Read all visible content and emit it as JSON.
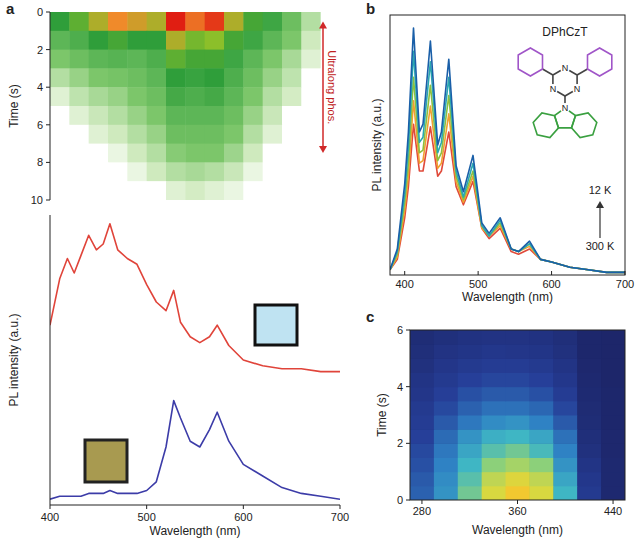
{
  "chart_data": [
    {
      "type": "heatmap",
      "panel": "a",
      "y_label": "Time (s)",
      "annotation": {
        "text": "Ultralong phos.",
        "range": [
          0.5,
          7.5
        ]
      },
      "x_bins": [
        400,
        420,
        440,
        460,
        480,
        500,
        520,
        540,
        560,
        580,
        600,
        620,
        640,
        660,
        680,
        700
      ],
      "y_bins": [
        0,
        1,
        2,
        3,
        4,
        5,
        6,
        7,
        8,
        9,
        10
      ],
      "cells": [
        [
          0.45,
          0.55,
          0.7,
          0.8,
          0.75,
          0.7,
          1.0,
          0.85,
          0.95,
          0.7,
          0.5,
          0.4,
          0.25,
          0.1,
          0
        ],
        [
          0.3,
          0.35,
          0.45,
          0.5,
          0.45,
          0.45,
          0.7,
          0.6,
          0.65,
          0.5,
          0.4,
          0.3,
          0.2,
          0.05,
          0
        ],
        [
          0.2,
          0.25,
          0.3,
          0.32,
          0.3,
          0.35,
          0.55,
          0.5,
          0.5,
          0.4,
          0.3,
          0.2,
          0.12,
          0.03,
          0
        ],
        [
          0.1,
          0.15,
          0.2,
          0.22,
          0.25,
          0.3,
          0.45,
          0.42,
          0.45,
          0.35,
          0.25,
          0.15,
          0.08,
          0,
          0
        ],
        [
          0.03,
          0.08,
          0.12,
          0.15,
          0.2,
          0.25,
          0.38,
          0.35,
          0.38,
          0.3,
          0.2,
          0.1,
          0.04,
          0,
          0
        ],
        [
          0,
          0.03,
          0.06,
          0.1,
          0.15,
          0.2,
          0.3,
          0.3,
          0.3,
          0.25,
          0.15,
          0.06,
          0,
          0,
          0
        ],
        [
          0,
          0,
          0.03,
          0.05,
          0.1,
          0.15,
          0.25,
          0.25,
          0.25,
          0.2,
          0.1,
          0.03,
          0,
          0,
          0
        ],
        [
          0,
          0,
          0,
          0.02,
          0.05,
          0.1,
          0.18,
          0.2,
          0.2,
          0.14,
          0.05,
          0,
          0,
          0,
          0
        ],
        [
          0,
          0,
          0,
          0,
          0.02,
          0.05,
          0.1,
          0.12,
          0.1,
          0.06,
          0.02,
          0,
          0,
          0,
          0
        ],
        [
          0,
          0,
          0,
          0,
          0,
          0,
          0.03,
          0.04,
          0.03,
          0.02,
          0,
          0,
          0,
          0,
          0
        ]
      ],
      "zlim": [
        0,
        1
      ],
      "xlim": [
        400,
        700
      ],
      "ylim": [
        0,
        10
      ],
      "yticks": [
        0,
        2,
        4,
        6,
        8,
        10
      ],
      "tick_labels": "y"
    },
    {
      "type": "line",
      "x_label": "Wavelength (nm)",
      "y_label": "PL intensity (a.u.)",
      "x": [
        400,
        410,
        418,
        425,
        432,
        440,
        448,
        455,
        462,
        470,
        480,
        490,
        500,
        510,
        520,
        528,
        535,
        545,
        555,
        565,
        573,
        585,
        600,
        620,
        640,
        660,
        680,
        700
      ],
      "series": [
        {
          "color": "#e0443a",
          "values": [
            0.62,
            0.78,
            0.85,
            0.8,
            0.86,
            0.93,
            0.88,
            0.9,
            0.97,
            0.88,
            0.85,
            0.83,
            0.76,
            0.7,
            0.67,
            0.74,
            0.63,
            0.58,
            0.56,
            0.58,
            0.62,
            0.55,
            0.5,
            0.48,
            0.47,
            0.47,
            0.46,
            0.46
          ]
        },
        {
          "color": "#3c3ca8",
          "values": [
            0.02,
            0.03,
            0.03,
            0.03,
            0.03,
            0.04,
            0.04,
            0.04,
            0.05,
            0.04,
            0.04,
            0.04,
            0.05,
            0.08,
            0.2,
            0.36,
            0.3,
            0.22,
            0.2,
            0.26,
            0.32,
            0.22,
            0.14,
            0.1,
            0.06,
            0.04,
            0.03,
            0.02
          ]
        }
      ],
      "xlim": [
        400,
        700
      ],
      "xticks": [
        400,
        500,
        600,
        700
      ],
      "ylim": [
        0,
        1
      ],
      "tick_labels": "x"
    },
    {
      "type": "line",
      "panel": "b",
      "molecule_label": "DPhCzT",
      "atom_labels": [
        "N",
        "N",
        "N",
        "N"
      ],
      "x_label": "Wavelength (nm)",
      "y_label": "PL intensity (a.u.)",
      "x": [
        380,
        390,
        400,
        405,
        412,
        420,
        425,
        435,
        445,
        450,
        460,
        470,
        480,
        493,
        505,
        515,
        530,
        545,
        555,
        570,
        585,
        600,
        625,
        650,
        675,
        700
      ],
      "series": [
        {
          "name": "12 K",
          "color": "#1a5fa8",
          "values": [
            0.02,
            0.1,
            0.35,
            0.55,
            0.95,
            0.55,
            0.58,
            0.9,
            0.5,
            0.55,
            0.83,
            0.42,
            0.32,
            0.46,
            0.2,
            0.16,
            0.22,
            0.1,
            0.09,
            0.13,
            0.06,
            0.05,
            0.03,
            0.02,
            0.01,
            0.01
          ]
        },
        {
          "color": "#2aa8b0",
          "values": [
            0.02,
            0.09,
            0.31,
            0.49,
            0.86,
            0.51,
            0.53,
            0.82,
            0.47,
            0.51,
            0.76,
            0.4,
            0.3,
            0.43,
            0.19,
            0.15,
            0.21,
            0.1,
            0.09,
            0.12,
            0.06,
            0.05,
            0.03,
            0.02,
            0.01,
            0.01
          ]
        },
        {
          "color": "#8cc040",
          "values": [
            0.02,
            0.08,
            0.28,
            0.43,
            0.76,
            0.47,
            0.48,
            0.73,
            0.44,
            0.47,
            0.69,
            0.38,
            0.29,
            0.4,
            0.19,
            0.15,
            0.2,
            0.1,
            0.09,
            0.12,
            0.06,
            0.05,
            0.03,
            0.02,
            0.01,
            0.01
          ]
        },
        {
          "color": "#f0a030",
          "values": [
            0.02,
            0.07,
            0.25,
            0.38,
            0.67,
            0.43,
            0.44,
            0.65,
            0.41,
            0.43,
            0.62,
            0.36,
            0.28,
            0.38,
            0.18,
            0.15,
            0.19,
            0.1,
            0.09,
            0.11,
            0.06,
            0.05,
            0.03,
            0.02,
            0.01,
            0.01
          ]
        },
        {
          "name": "300 K",
          "color": "#e04a3a",
          "values": [
            0.02,
            0.06,
            0.22,
            0.34,
            0.58,
            0.4,
            0.4,
            0.57,
            0.38,
            0.4,
            0.55,
            0.34,
            0.27,
            0.36,
            0.18,
            0.14,
            0.18,
            0.09,
            0.08,
            0.1,
            0.06,
            0.05,
            0.03,
            0.02,
            0.01,
            0.01
          ]
        }
      ],
      "xlim": [
        380,
        700
      ],
      "xticks": [
        400,
        500,
        600,
        700
      ],
      "ylim": [
        0,
        1
      ],
      "tick_labels": "x"
    },
    {
      "type": "heatmap",
      "panel": "c",
      "x_label": "Wavelength (nm)",
      "y_label": "Time (s)",
      "x_bins": [
        270,
        290,
        310,
        330,
        350,
        370,
        390,
        410,
        430,
        450
      ],
      "y_bins": [
        0,
        0.5,
        1,
        1.5,
        2,
        2.5,
        3,
        3.5,
        4,
        4.5,
        5,
        5.5,
        6
      ],
      "cells": [
        [
          0.35,
          0.5,
          0.7,
          0.9,
          1.0,
          0.9,
          0.6,
          0.2,
          0.05
        ],
        [
          0.33,
          0.48,
          0.65,
          0.85,
          0.92,
          0.85,
          0.55,
          0.18,
          0.05
        ],
        [
          0.3,
          0.45,
          0.6,
          0.75,
          0.8,
          0.75,
          0.5,
          0.15,
          0.05
        ],
        [
          0.28,
          0.42,
          0.55,
          0.65,
          0.7,
          0.62,
          0.45,
          0.12,
          0.04
        ],
        [
          0.25,
          0.38,
          0.5,
          0.58,
          0.6,
          0.55,
          0.4,
          0.1,
          0.04
        ],
        [
          0.22,
          0.33,
          0.42,
          0.48,
          0.5,
          0.45,
          0.33,
          0.08,
          0.03
        ],
        [
          0.2,
          0.28,
          0.35,
          0.4,
          0.4,
          0.37,
          0.27,
          0.07,
          0.03
        ],
        [
          0.17,
          0.24,
          0.3,
          0.33,
          0.33,
          0.3,
          0.22,
          0.06,
          0.03
        ],
        [
          0.15,
          0.2,
          0.25,
          0.27,
          0.27,
          0.25,
          0.18,
          0.05,
          0.02
        ],
        [
          0.12,
          0.17,
          0.2,
          0.22,
          0.22,
          0.2,
          0.15,
          0.04,
          0.02
        ],
        [
          0.1,
          0.14,
          0.16,
          0.18,
          0.17,
          0.16,
          0.12,
          0.03,
          0.02
        ],
        [
          0.08,
          0.11,
          0.13,
          0.14,
          0.14,
          0.13,
          0.1,
          0.03,
          0.02
        ]
      ],
      "zlim": [
        0,
        1
      ],
      "xlim": [
        270,
        450
      ],
      "xticks": [
        280,
        360,
        440
      ],
      "ylim": [
        0,
        6
      ],
      "yticks": [
        0,
        2,
        4,
        6
      ]
    }
  ]
}
